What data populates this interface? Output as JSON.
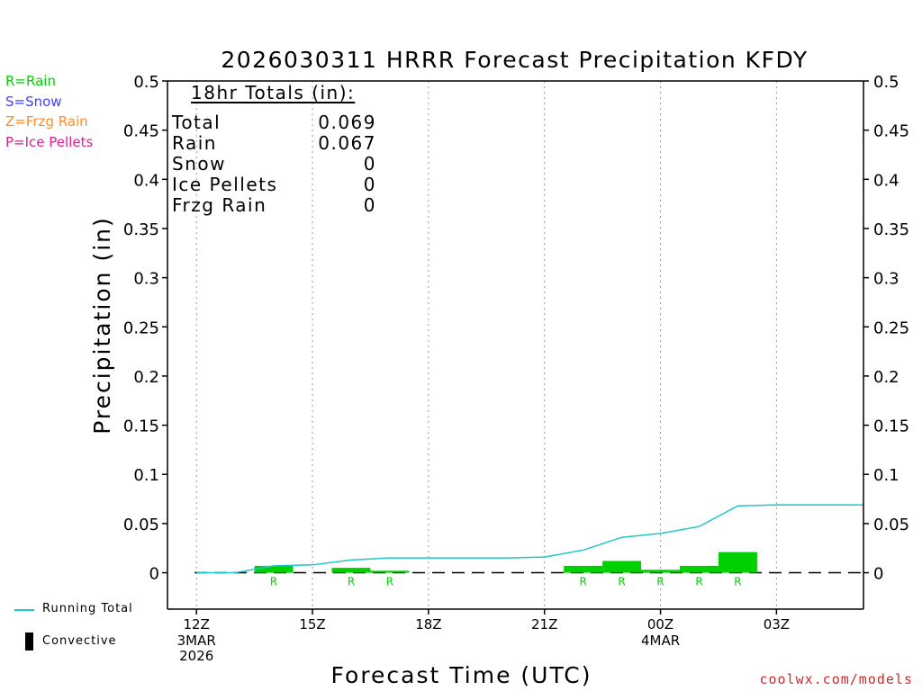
{
  "chart_data": {
    "type": "bar",
    "title": "2026030311 HRRR Forecast Precipitation KFDY",
    "xlabel": "Forecast Time (UTC)",
    "ylabel": "Precipitation (in)",
    "ylim": [
      -0.037,
      0.5
    ],
    "yticks": [
      0,
      0.05,
      0.1,
      0.15,
      0.2,
      0.25,
      0.3,
      0.35,
      0.4,
      0.45,
      0.5
    ],
    "ytick_labels": [
      "0",
      "0.05",
      "0.1",
      "0.15",
      "0.2",
      "0.25",
      "0.3",
      "0.35",
      "0.4",
      "0.45",
      "0.5"
    ],
    "xlim": [
      11.25,
      29.25
    ],
    "xticks": [
      {
        "hour": 12,
        "label": "12Z",
        "sub": [
          "3MAR",
          "2026"
        ]
      },
      {
        "hour": 15,
        "label": "15Z",
        "sub": []
      },
      {
        "hour": 18,
        "label": "18Z",
        "sub": []
      },
      {
        "hour": 21,
        "label": "21Z",
        "sub": []
      },
      {
        "hour": 24,
        "label": "00Z",
        "sub": [
          "4MAR"
        ]
      },
      {
        "hour": 27,
        "label": "03Z",
        "sub": []
      }
    ],
    "bars": [
      {
        "hour": 13,
        "value": 0.0,
        "type": ""
      },
      {
        "hour": 14,
        "value": 0.007,
        "type": "R"
      },
      {
        "hour": 15,
        "value": 0.0,
        "type": ""
      },
      {
        "hour": 16,
        "value": 0.005,
        "type": "R"
      },
      {
        "hour": 17,
        "value": 0.002,
        "type": "R"
      },
      {
        "hour": 18,
        "value": 0.0,
        "type": ""
      },
      {
        "hour": 19,
        "value": 0.0,
        "type": ""
      },
      {
        "hour": 20,
        "value": 0.0,
        "type": ""
      },
      {
        "hour": 21,
        "value": 0.0,
        "type": ""
      },
      {
        "hour": 22,
        "value": 0.007,
        "type": "R"
      },
      {
        "hour": 23,
        "value": 0.012,
        "type": "R"
      },
      {
        "hour": 24,
        "value": 0.003,
        "type": "R"
      },
      {
        "hour": 25,
        "value": 0.007,
        "type": "R"
      },
      {
        "hour": 26,
        "value": 0.021,
        "type": "R"
      },
      {
        "hour": 27,
        "value": 0.0,
        "type": ""
      },
      {
        "hour": 28,
        "value": 0.0,
        "type": ""
      },
      {
        "hour": 29,
        "value": 0.0,
        "type": ""
      }
    ],
    "running_total": {
      "x": [
        12,
        13,
        14,
        15,
        16,
        17,
        18,
        19,
        20,
        21,
        22,
        23,
        24,
        25,
        26,
        27,
        28,
        29.25
      ],
      "y": [
        0,
        0,
        0.007,
        0.008,
        0.013,
        0.015,
        0.015,
        0.015,
        0.015,
        0.016,
        0.023,
        0.036,
        0.04,
        0.047,
        0.068,
        0.069,
        0.069,
        0.069
      ]
    },
    "colors": {
      "rain": "#00d000",
      "snow": "#4040ff",
      "frzg": "#ff8c2a",
      "ice": "#e0208c",
      "running_total": "#1ec8c8",
      "axis": "#000000",
      "grid": "#9a9a9a"
    },
    "totals": {
      "heading": "18hr Totals (in):",
      "rows": [
        {
          "label": "Total",
          "value": "0.069"
        },
        {
          "label": "Rain",
          "value": "0.067"
        },
        {
          "label": "Snow",
          "value": "0"
        },
        {
          "label": "Ice Pellets",
          "value": "0"
        },
        {
          "label": "Frzg Rain",
          "value": "0"
        }
      ]
    }
  },
  "legend": {
    "rain": "R=Rain",
    "snow": "S=Snow",
    "frzg": "Z=Frzg Rain",
    "ice": "P=Ice Pellets",
    "running_total": "Running Total",
    "convective": "Convective"
  },
  "credit": "coolwx.com/models"
}
